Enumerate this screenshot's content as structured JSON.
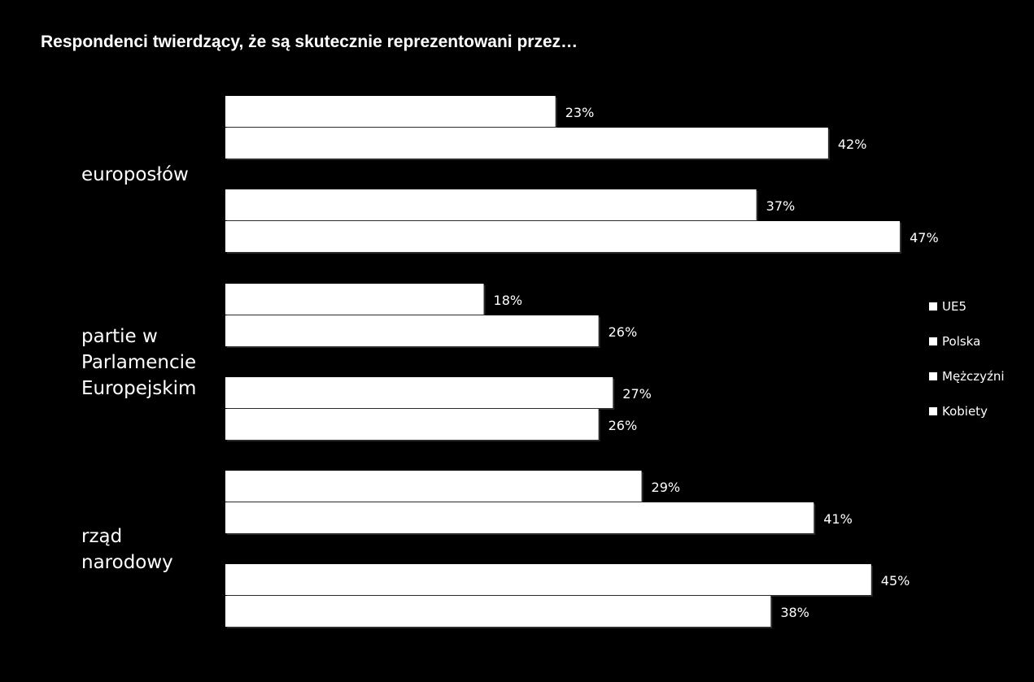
{
  "chart_data": {
    "type": "bar",
    "orientation": "horizontal",
    "title": "Respondenci twierdzący, że są skutecznie reprezentowani przez…",
    "categories": [
      "europosłów",
      "partie w Parlamencie Europejskim",
      "rząd narodowy"
    ],
    "category_label_lines": [
      [
        "europosłów"
      ],
      [
        "partie w",
        "Parlamencie",
        "Europejskim"
      ],
      [
        "rząd",
        "narodowy"
      ]
    ],
    "series": [
      {
        "name": "UE5",
        "values": [
          23,
          18,
          29
        ],
        "labels": [
          "23%",
          "18%",
          "29%"
        ]
      },
      {
        "name": "Polska",
        "values": [
          42,
          26,
          41
        ],
        "labels": [
          "42%",
          "26%",
          "41%"
        ]
      },
      {
        "name": "Mężczyźni",
        "values": [
          37,
          27,
          45
        ],
        "labels": [
          "37%",
          "27%",
          "45%"
        ]
      },
      {
        "name": "Kobiety",
        "values": [
          47,
          26,
          38
        ],
        "labels": [
          "47%",
          "26%",
          "38%"
        ]
      }
    ],
    "xlim": [
      0,
      50
    ],
    "unit": "%",
    "grid": false,
    "legend_position": "right",
    "colors": {
      "background": "#000000",
      "bar": "#ffffff",
      "text": "#ffffff"
    }
  }
}
